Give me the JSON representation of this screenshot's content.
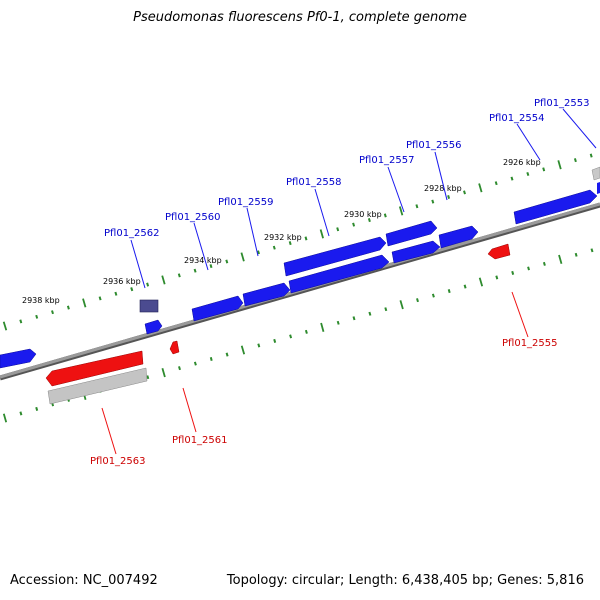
{
  "title": "Pseudomonas fluorescens Pf0-1, complete genome",
  "footer": {
    "accession": "Accession: NC_007492",
    "summary": "Topology: circular; Length: 6,438,405 bp; Genes: 5,816"
  },
  "colors": {
    "forward_gene": "#1a1aee",
    "reverse_gene": "#ee1111",
    "selected_gene": "#4b4b90",
    "gray_feature": "#b8b8b8",
    "backbone": "#8a8a8a",
    "tick": "#2e8b2e",
    "forward_label": "#0000cc",
    "reverse_label": "#cc0000"
  },
  "ruler_labels": [
    "2938 kbp",
    "2936 kbp",
    "2934 kbp",
    "2932 kbp",
    "2930 kbp",
    "2928 kbp",
    "2926 kbp"
  ],
  "gene_labels": {
    "forward": [
      "Pfl01_2553",
      "Pfl01_2554",
      "Pfl01_2556",
      "Pfl01_2557",
      "Pfl01_2558",
      "Pfl01_2559",
      "Pfl01_2560",
      "Pfl01_2562"
    ],
    "reverse": [
      "Pfl01_2555",
      "Pfl01_2561",
      "Pfl01_2563"
    ]
  }
}
